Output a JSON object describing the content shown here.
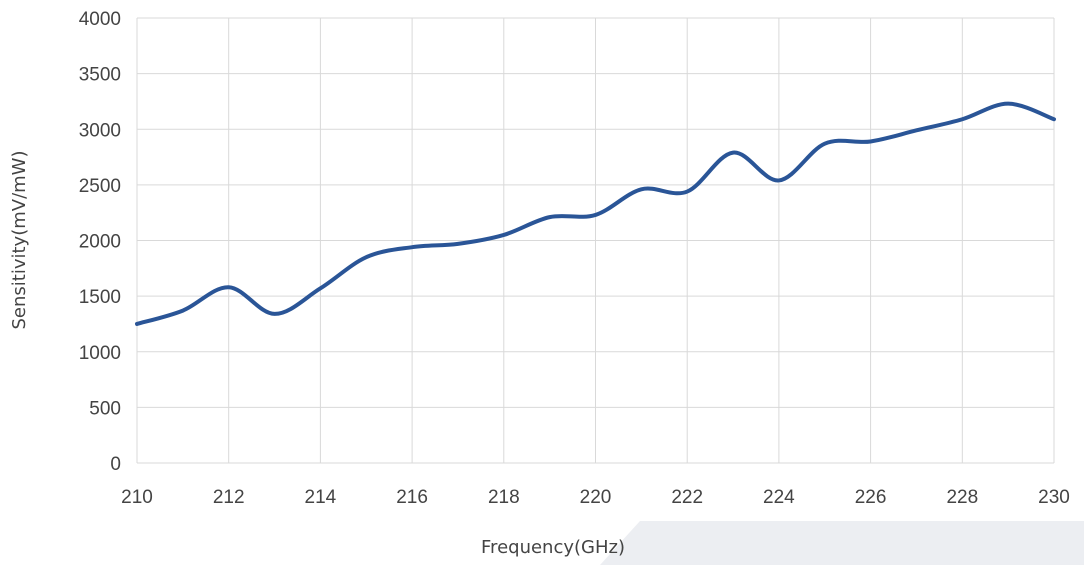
{
  "chart_data": {
    "type": "line",
    "xlabel": "Frequency(GHz)",
    "ylabel": "Sensitivity(mV/mW)",
    "xlim": [
      210,
      230
    ],
    "ylim": [
      0,
      4000
    ],
    "x_ticks": [
      210,
      212,
      214,
      216,
      218,
      220,
      222,
      224,
      226,
      228,
      230
    ],
    "y_ticks": [
      0,
      500,
      1000,
      1500,
      2000,
      2500,
      3000,
      3500,
      4000
    ],
    "grid": true,
    "legend": "none",
    "series": [
      {
        "color": "#2a5597",
        "x": [
          210,
          211,
          212,
          213,
          214,
          215,
          216,
          217,
          218,
          219,
          220,
          221,
          222,
          223,
          224,
          225,
          226,
          227,
          228,
          229,
          230
        ],
        "y": [
          1250,
          1370,
          1580,
          1340,
          1570,
          1850,
          1940,
          1970,
          2050,
          2210,
          2230,
          2460,
          2440,
          2790,
          2540,
          2870,
          2890,
          2990,
          3090,
          3230,
          3090
        ]
      }
    ]
  }
}
